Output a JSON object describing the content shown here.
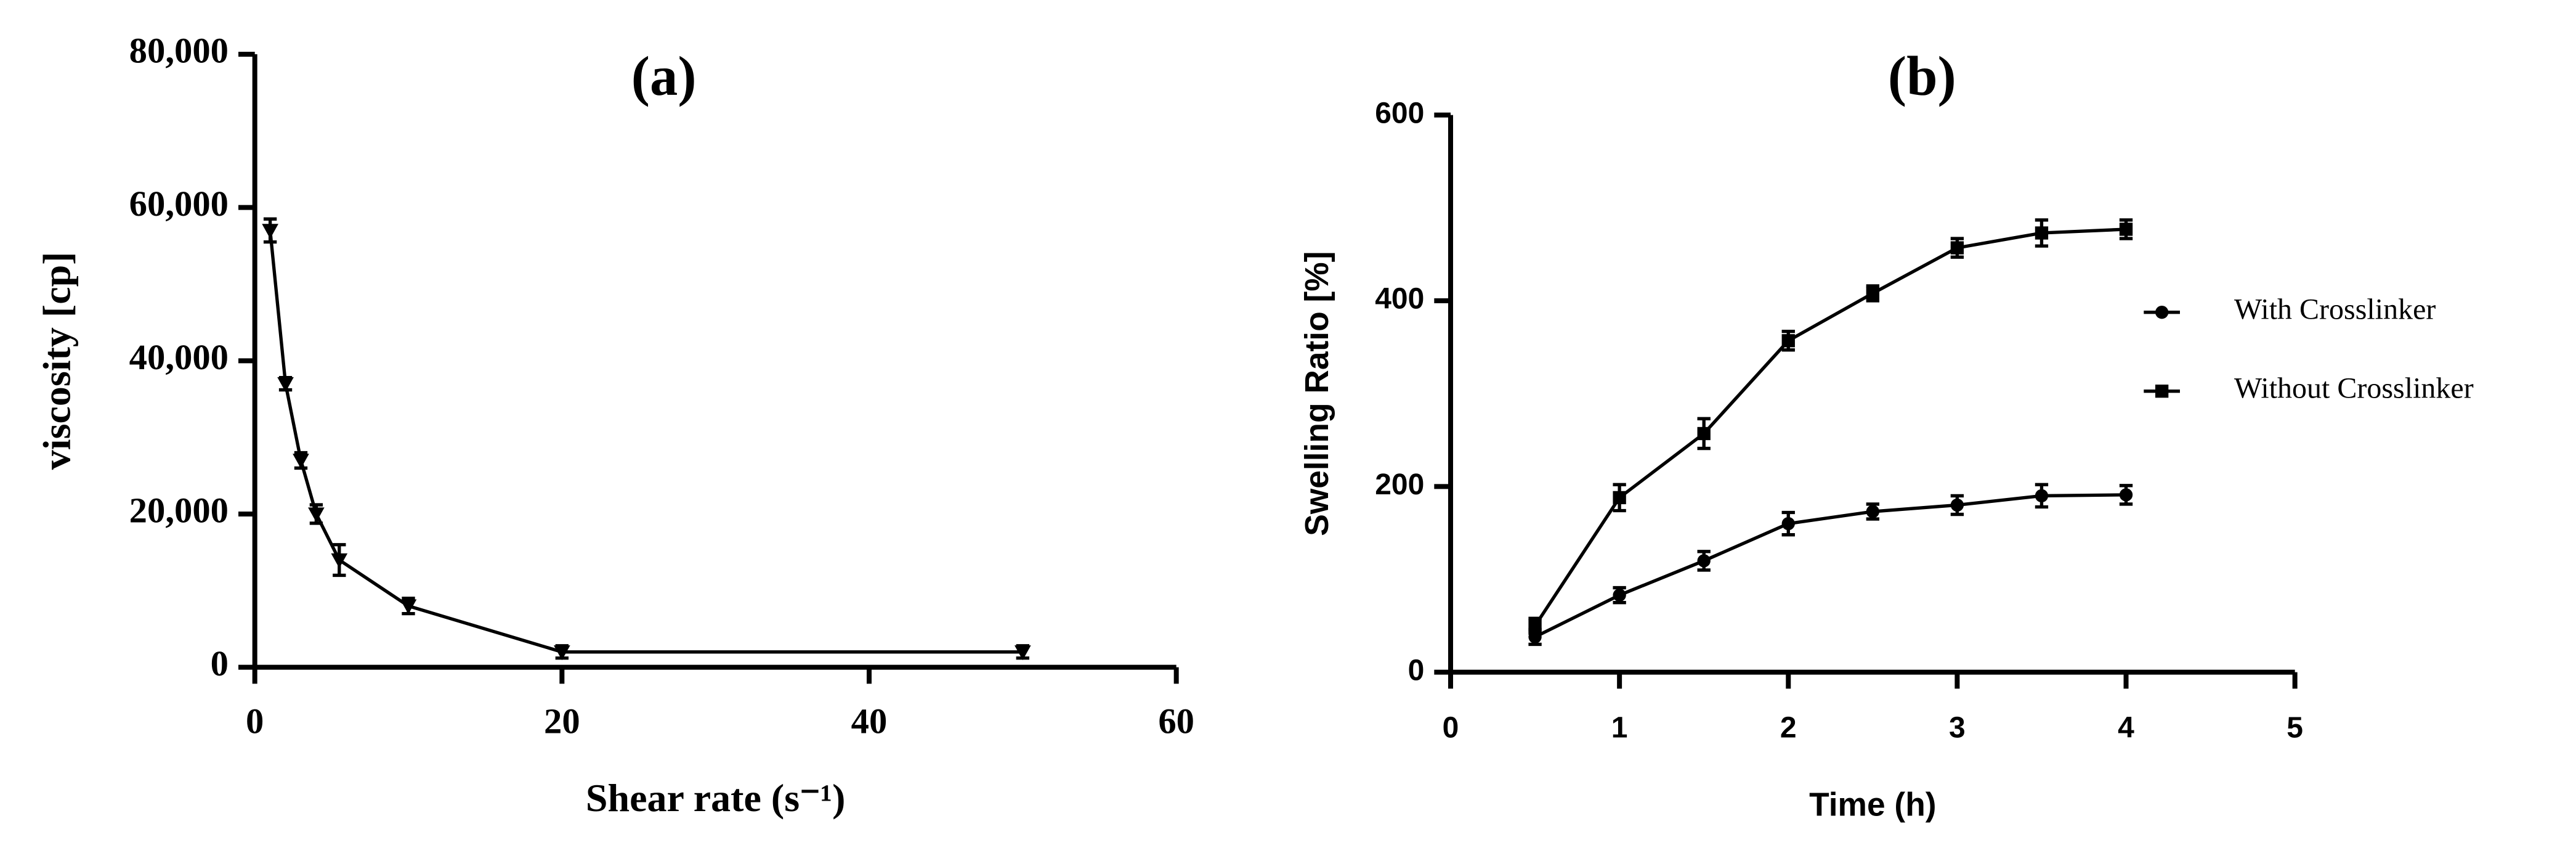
{
  "chart_data": [
    {
      "type": "line",
      "title": "(a)",
      "x_label": "Shear rate (s⁻¹)",
      "y_label": "viscosity [cp]",
      "x": [
        1,
        2,
        3,
        4,
        5.5,
        10,
        20,
        50
      ],
      "values": [
        57000,
        37000,
        27000,
        20000,
        14000,
        8000,
        2000,
        2000
      ],
      "errors": [
        1500,
        800,
        1000,
        1200,
        2000,
        1000,
        800,
        800
      ],
      "marker": "triangle-down",
      "color": "#000000",
      "xlim": [
        0,
        60
      ],
      "xticks": [
        0,
        20,
        40,
        60
      ],
      "ylim": [
        0,
        80000
      ],
      "yticks": [
        0,
        {
          "value": 20000,
          "label": "20,000"
        },
        {
          "value": 40000,
          "label": "40,000"
        },
        {
          "value": 60000,
          "label": "60,000"
        },
        {
          "value": 80000,
          "label": "80,000"
        }
      ]
    },
    {
      "type": "line",
      "title": "(b)",
      "x_label": "Time (h)",
      "y_label": "Swelling Ratio [%]",
      "x": [
        0.5,
        1,
        1.5,
        2,
        2.5,
        3,
        3.5,
        4
      ],
      "series": [
        {
          "name": "With Crosslinker",
          "color": "#000000",
          "marker": "circle",
          "values": [
            38,
            83,
            120,
            160,
            173,
            180,
            190,
            191
          ],
          "errors": [
            8,
            8,
            10,
            12,
            8,
            10,
            12,
            10
          ]
        },
        {
          "name": "Without Crosslinker",
          "color": "#000000",
          "marker": "square",
          "values": [
            50,
            188,
            257,
            357,
            408,
            457,
            473,
            477
          ],
          "errors": [
            8,
            14,
            16,
            10,
            8,
            10,
            14,
            10
          ]
        }
      ],
      "xlim": [
        0,
        5
      ],
      "xticks": [
        0,
        1,
        2,
        3,
        4,
        5
      ],
      "ylim": [
        0,
        600
      ],
      "yticks": [
        0,
        200,
        400,
        600
      ],
      "legend": "right"
    }
  ]
}
